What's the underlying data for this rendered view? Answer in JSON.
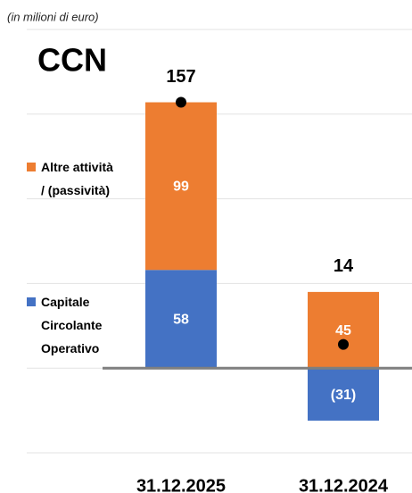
{
  "chart_data": {
    "type": "bar",
    "subtitle": "(in milioni di euro)",
    "title": "CCN",
    "categories": [
      "31.12.2025",
      "31.12.2024"
    ],
    "series": [
      {
        "name": "Capitale Circolante Operativo",
        "color": "#4472c4",
        "values": [
          58,
          -31
        ],
        "value_labels": [
          "58",
          "(31)"
        ]
      },
      {
        "name": "Altre attività / (passività)",
        "color": "#ed7d31",
        "values": [
          99,
          45
        ]
      }
    ],
    "totals": [
      157,
      14
    ],
    "ylim": [
      -50,
      200
    ],
    "yticks": [
      -50,
      0,
      50,
      100,
      150,
      200
    ],
    "grid": true
  }
}
